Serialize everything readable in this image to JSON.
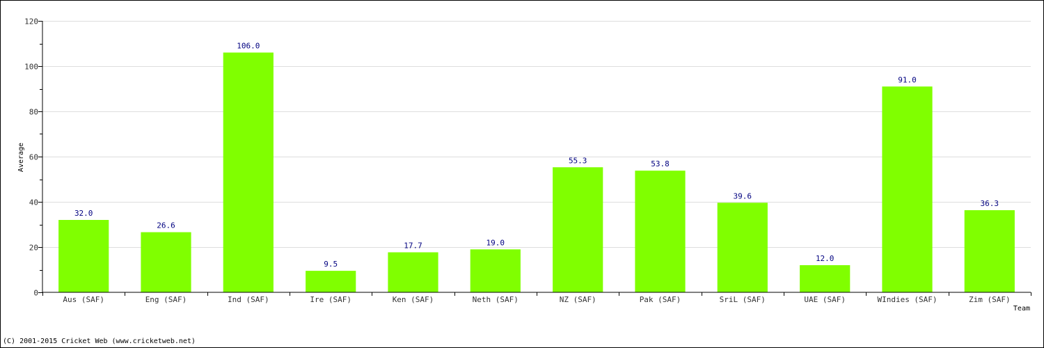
{
  "chart_data": {
    "type": "bar",
    "categories": [
      "Aus (SAF)",
      "Eng (SAF)",
      "Ind (SAF)",
      "Ire (SAF)",
      "Ken (SAF)",
      "Neth (SAF)",
      "NZ (SAF)",
      "Pak (SAF)",
      "SriL (SAF)",
      "UAE (SAF)",
      "WIndies (SAF)",
      "Zim (SAF)"
    ],
    "values": [
      32.0,
      26.6,
      106.0,
      9.5,
      17.7,
      19.0,
      55.3,
      53.8,
      39.6,
      12.0,
      91.0,
      36.3
    ],
    "value_labels": [
      "32.0",
      "26.6",
      "106.0",
      "9.5",
      "17.7",
      "19.0",
      "55.3",
      "53.8",
      "39.6",
      "12.0",
      "91.0",
      "36.3"
    ],
    "xlabel": "Team",
    "ylabel": "Average",
    "ylim": [
      0,
      120
    ],
    "yticks": [
      0,
      20,
      40,
      60,
      80,
      100,
      120
    ],
    "grid": true,
    "bar_color": "#80ff00",
    "grid_color": "#dddddd",
    "label_color": "#000080"
  },
  "footer": {
    "copyright": "(C) 2001-2015 Cricket Web (www.cricketweb.net)"
  }
}
